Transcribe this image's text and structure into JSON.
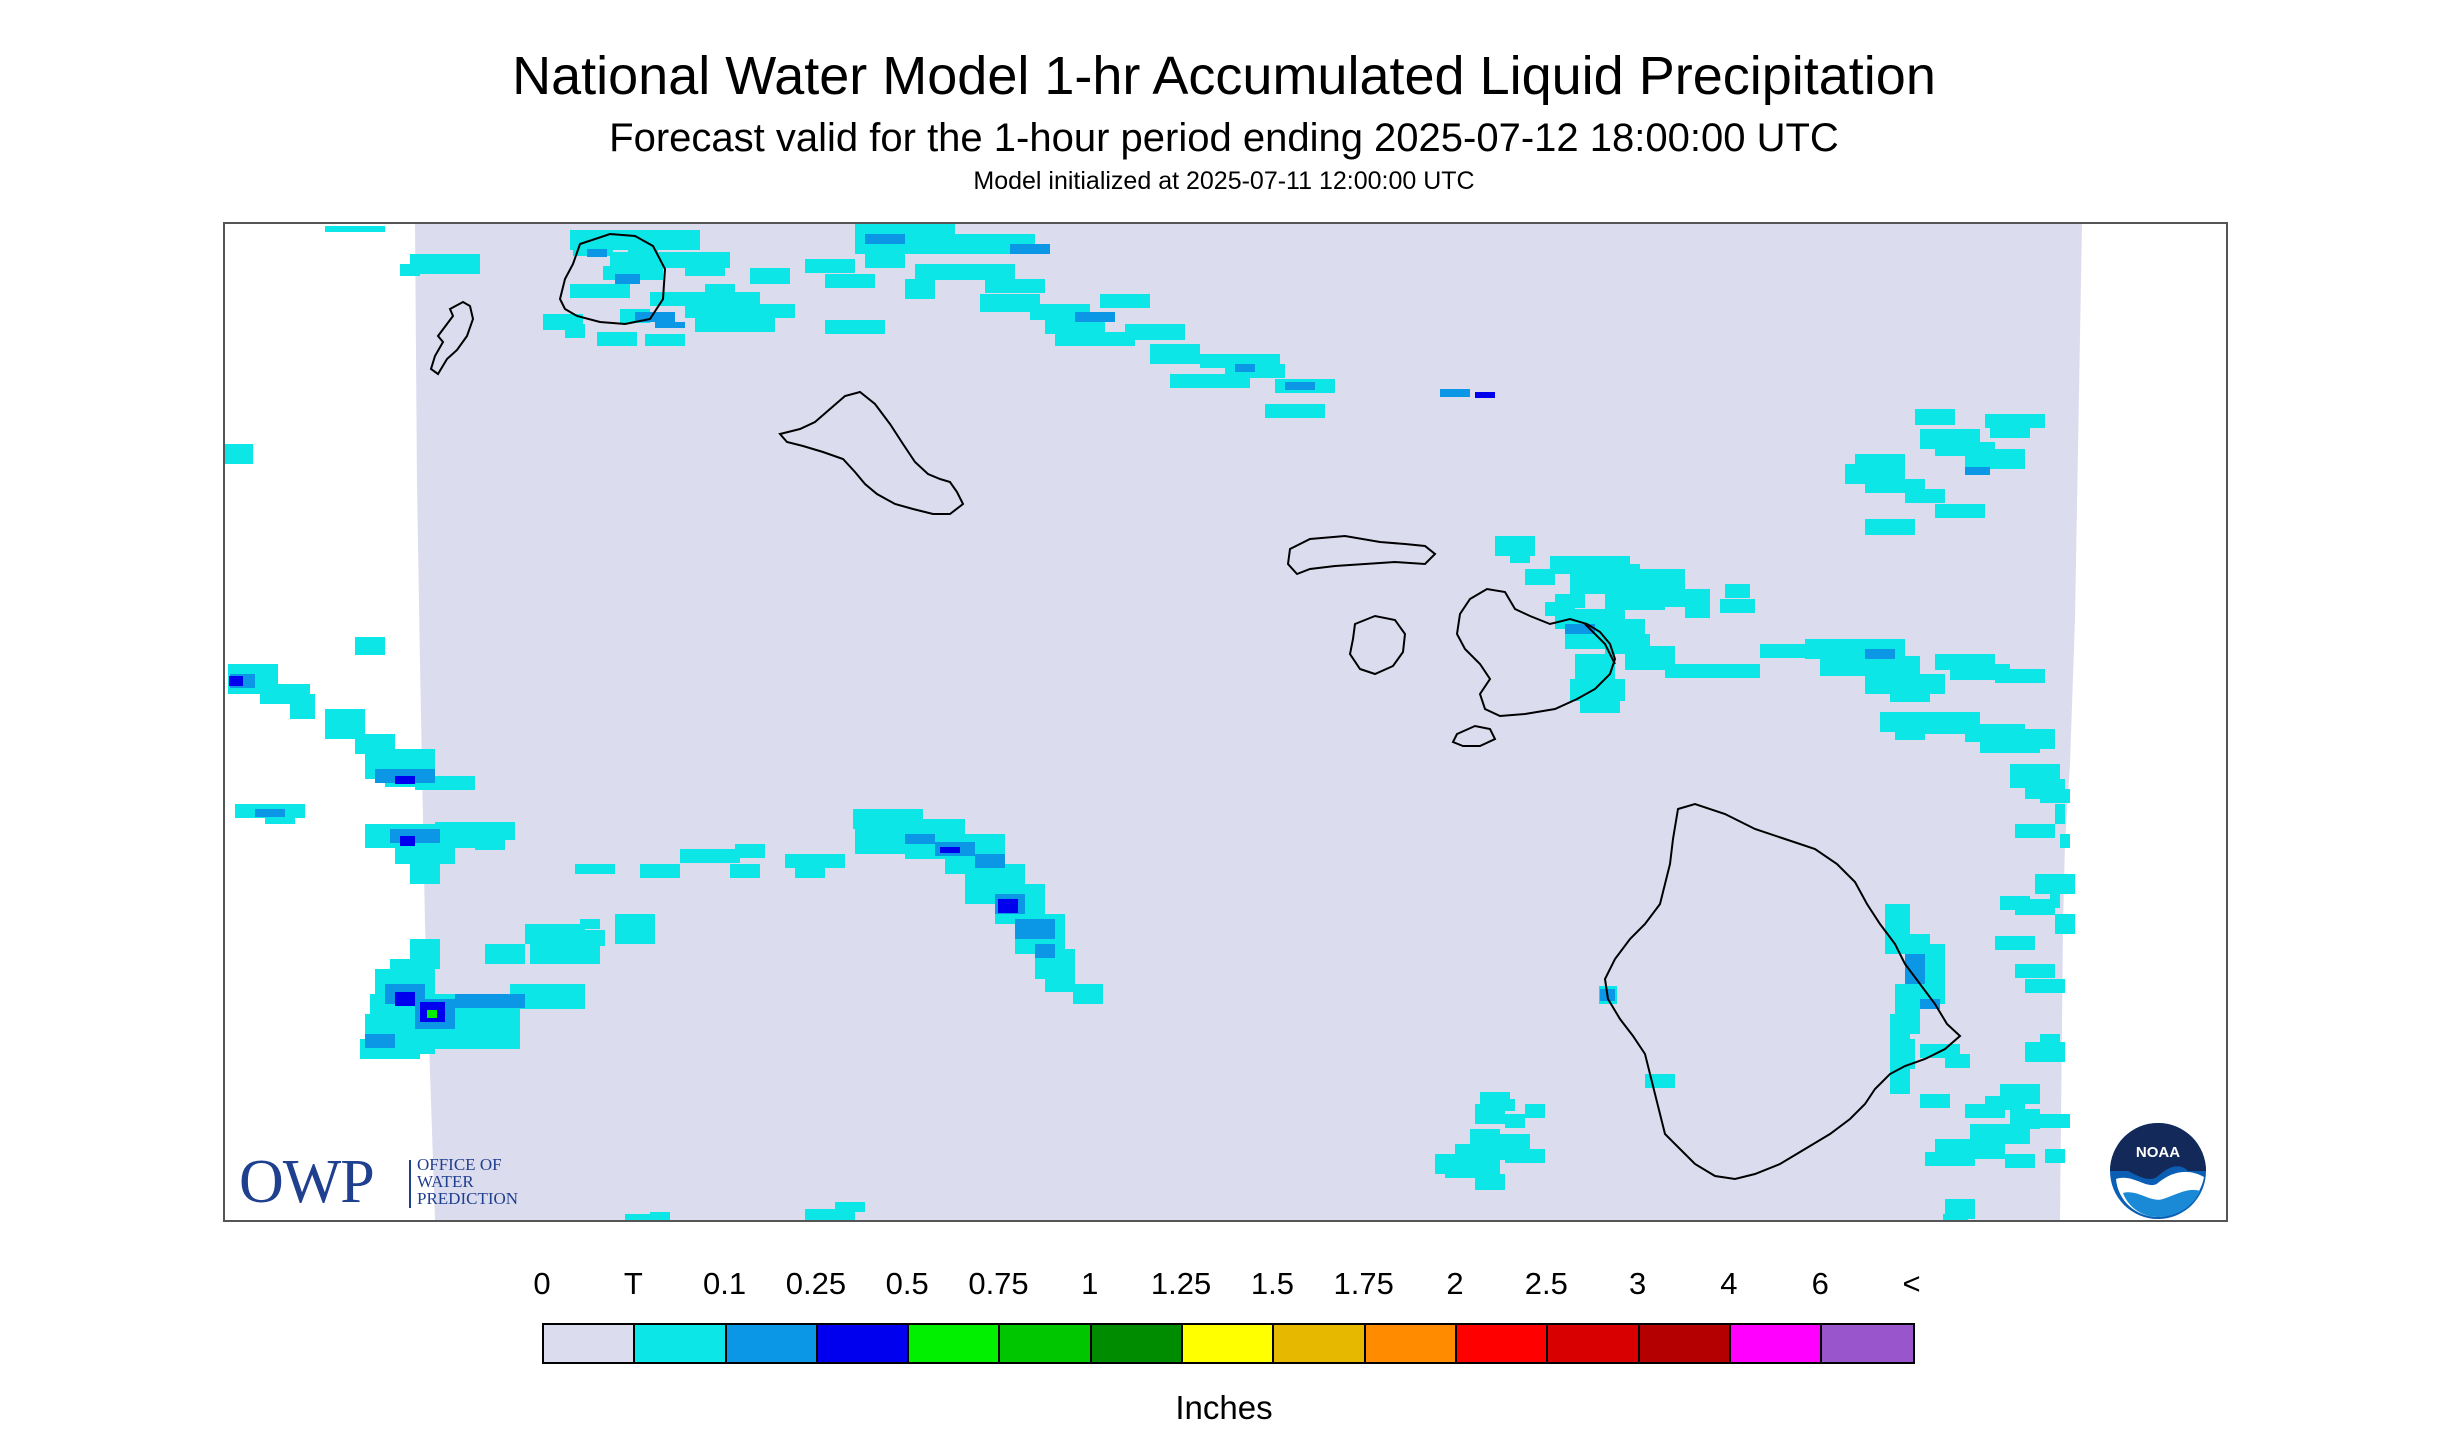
{
  "header": {
    "title": "National Water Model 1-hr Accumulated Liquid Precipitation",
    "subtitle": "Forecast valid for the 1-hour period ending 2025-07-12 18:00:00 UTC",
    "init_line": "Model initialized at 2025-07-11 12:00:00 UTC"
  },
  "map": {
    "region": "Hawaiian Islands",
    "background_color": "#dcdcef",
    "coastline_color": "#000000",
    "precip_cells": [
      {
        "bin": "T",
        "color": "#0ce6e6"
      },
      {
        "bin": "0.1",
        "color": "#0b96e6"
      },
      {
        "bin": "0.25",
        "color": "#0000ee"
      },
      {
        "bin": "0.5",
        "color": "#00f000"
      }
    ]
  },
  "logos": {
    "owp": {
      "abbrev": "OWP",
      "line1": "OFFICE OF",
      "line2": "WATER",
      "line3": "PREDICTION"
    },
    "noaa": {
      "text": "NOAA",
      "icon": "noaa-logo-icon"
    }
  },
  "legend": {
    "labels": [
      "0",
      "T",
      "0.1",
      "0.25",
      "0.5",
      "0.75",
      "1",
      "1.25",
      "1.5",
      "1.75",
      "2",
      "2.5",
      "3",
      "4",
      "6",
      "<"
    ],
    "colors": [
      "#dcdcef",
      "#0ce6e6",
      "#0b96e6",
      "#0000ee",
      "#00f000",
      "#00c600",
      "#008c00",
      "#ffff00",
      "#e6b800",
      "#ff8c00",
      "#ff0000",
      "#d80000",
      "#b40000",
      "#ff00ff",
      "#9955cc"
    ],
    "units": "Inches"
  }
}
